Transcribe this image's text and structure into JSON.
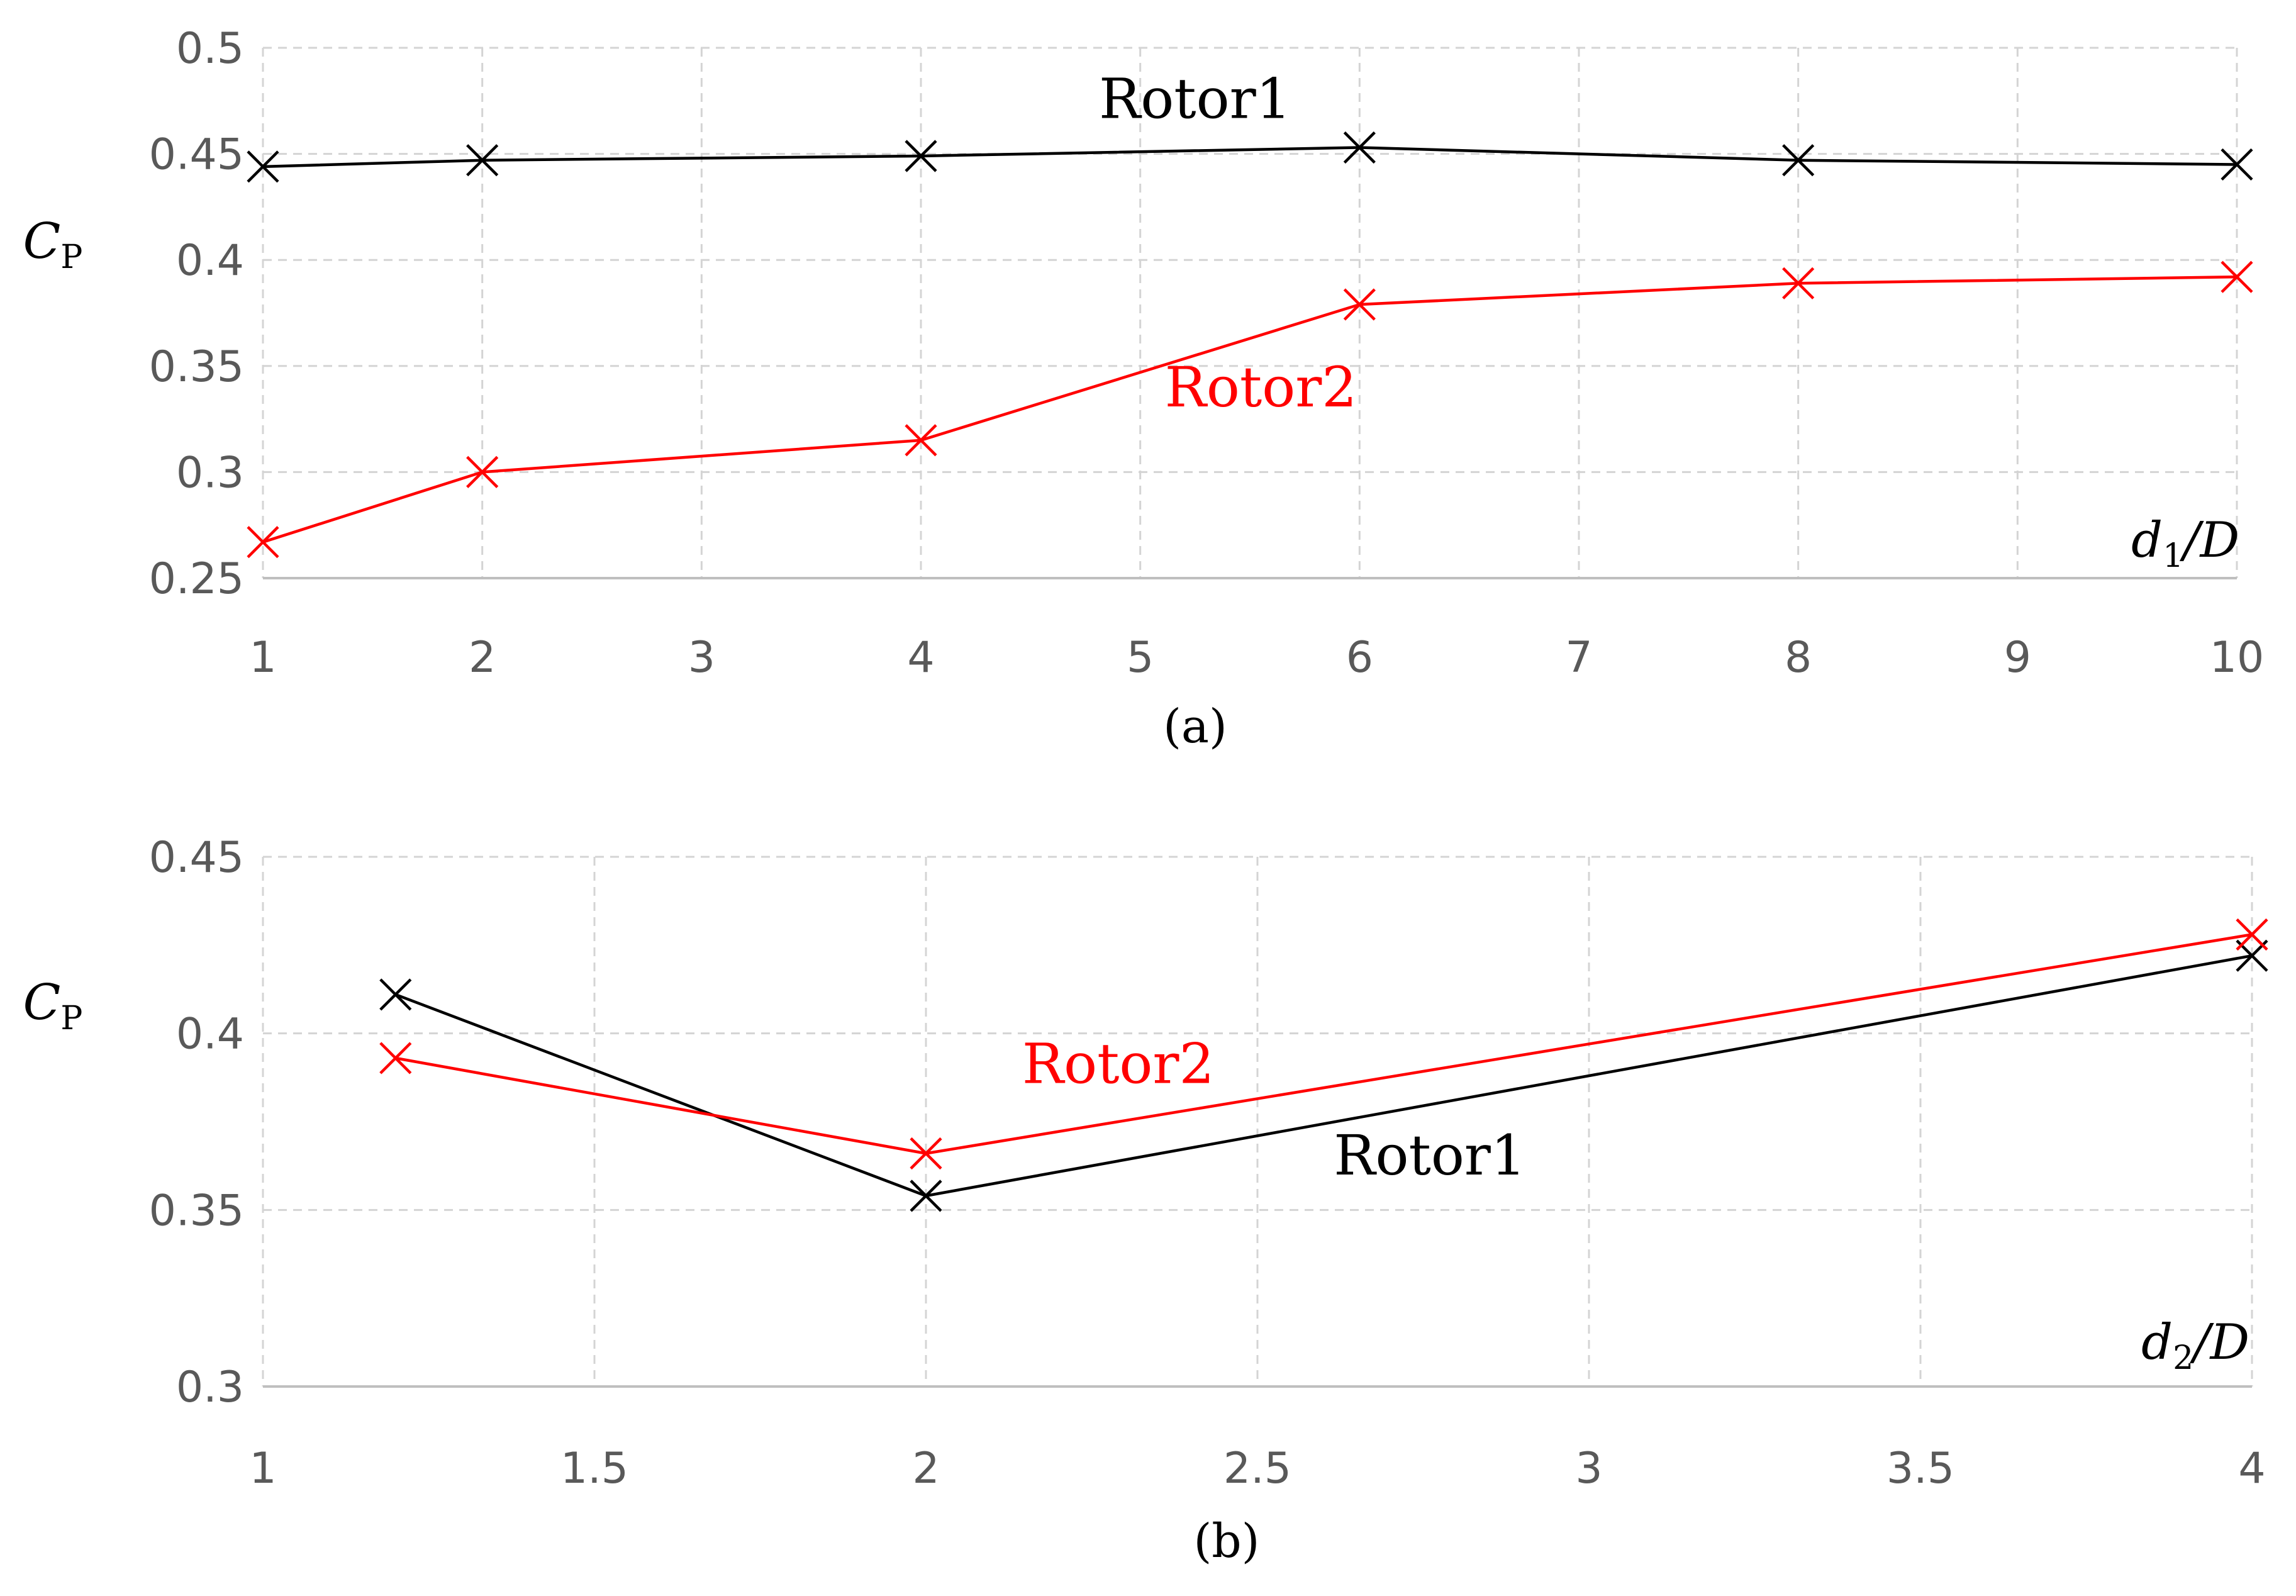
{
  "chart_data": [
    {
      "type": "line",
      "panel_label": "(a)",
      "ylabel": {
        "main": "C",
        "sub": "P"
      },
      "xlabel": {
        "main": "d",
        "sub": "1",
        "tail": "/D"
      },
      "xlim": [
        1,
        10
      ],
      "ylim": [
        0.25,
        0.5
      ],
      "xticks": [
        1,
        2,
        3,
        4,
        5,
        6,
        7,
        8,
        9,
        10
      ],
      "xtick_labels": [
        "1",
        "2",
        "3",
        "4",
        "5",
        "6",
        "7",
        "8",
        "9",
        "10"
      ],
      "yticks": [
        0.25,
        0.3,
        0.35,
        0.4,
        0.45,
        0.5
      ],
      "ytick_labels": [
        "0.25",
        "0.3",
        "0.35",
        "0.4",
        "0.45",
        "0.5"
      ],
      "grid": true,
      "series": [
        {
          "name": "Rotor1",
          "color": "#000000",
          "marker": "x",
          "x": [
            1,
            2,
            4,
            6,
            8,
            10
          ],
          "y": [
            0.444,
            0.447,
            0.449,
            0.453,
            0.447,
            0.445
          ],
          "label_at": [
            5.25,
            0.467
          ]
        },
        {
          "name": "Rotor2",
          "color": "#ff0000",
          "marker": "x",
          "x": [
            1,
            2,
            4,
            6,
            8,
            10
          ],
          "y": [
            0.267,
            0.3,
            0.315,
            0.379,
            0.389,
            0.392
          ],
          "label_at": [
            5.55,
            0.331
          ]
        }
      ]
    },
    {
      "type": "line",
      "panel_label": "(b)",
      "ylabel": {
        "main": "C",
        "sub": "P"
      },
      "xlabel": {
        "main": "d",
        "sub": "2",
        "tail": "/D"
      },
      "xlim": [
        1,
        4
      ],
      "ylim": [
        0.3,
        0.45
      ],
      "xticks": [
        1,
        1.5,
        2,
        2.5,
        3,
        3.5,
        4
      ],
      "xtick_labels": [
        "1",
        "1.5",
        "2",
        "2.5",
        "3",
        "3.5",
        "4"
      ],
      "yticks": [
        0.3,
        0.35,
        0.4,
        0.45
      ],
      "ytick_labels": [
        "0.3",
        "0.35",
        "0.4",
        "0.45"
      ],
      "grid": true,
      "series": [
        {
          "name": "Rotor1",
          "color": "#000000",
          "marker": "x",
          "x": [
            1.2,
            2,
            4
          ],
          "y": [
            0.411,
            0.354,
            0.422
          ],
          "label_at": [
            2.76,
            0.36
          ]
        },
        {
          "name": "Rotor2",
          "color": "#ff0000",
          "marker": "x",
          "x": [
            1.2,
            2,
            4
          ],
          "y": [
            0.393,
            0.366,
            0.428
          ],
          "label_at": [
            2.29,
            0.386
          ]
        }
      ]
    }
  ]
}
